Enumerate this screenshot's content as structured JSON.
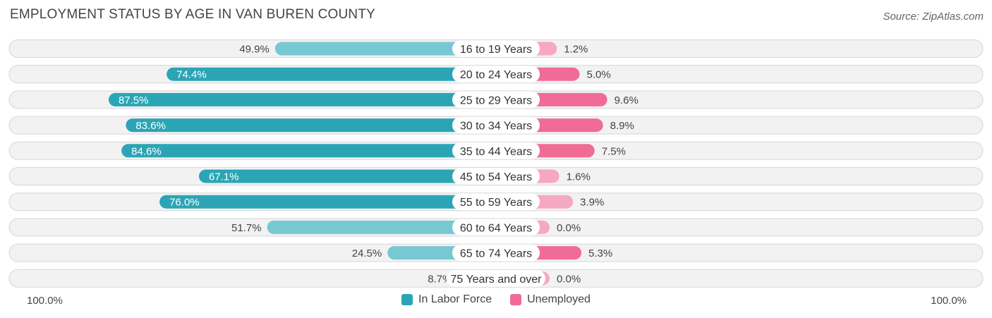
{
  "title": "EMPLOYMENT STATUS BY AGE IN VAN BUREN COUNTY",
  "source": "Source: ZipAtlas.com",
  "colors": {
    "labor_strong": "#2ba5b5",
    "labor_light": "#77c8d2",
    "unemployed_strong": "#f06c97",
    "unemployed_light": "#f6a8c2"
  },
  "chart_data": {
    "type": "bar",
    "orientation": "horizontal-diverging",
    "title": "EMPLOYMENT STATUS BY AGE IN VAN BUREN COUNTY",
    "categories": [
      "16 to 19 Years",
      "20 to 24 Years",
      "25 to 29 Years",
      "30 to 34 Years",
      "35 to 44 Years",
      "45 to 54 Years",
      "55 to 59 Years",
      "60 to 64 Years",
      "65 to 74 Years",
      "75 Years and over"
    ],
    "series": [
      {
        "name": "In Labor Force",
        "values": [
          49.9,
          74.4,
          87.5,
          83.6,
          84.6,
          67.1,
          76.0,
          51.7,
          24.5,
          8.7
        ],
        "labels": [
          "49.9%",
          "74.4%",
          "87.5%",
          "83.6%",
          "84.6%",
          "67.1%",
          "76.0%",
          "51.7%",
          "24.5%",
          "8.7%"
        ]
      },
      {
        "name": "Unemployed",
        "values": [
          1.2,
          5.0,
          9.6,
          8.9,
          7.5,
          1.6,
          3.9,
          0.0,
          5.3,
          0.0
        ],
        "labels": [
          "1.2%",
          "5.0%",
          "9.6%",
          "8.9%",
          "7.5%",
          "1.6%",
          "3.9%",
          "0.0%",
          "5.3%",
          "0.0%"
        ]
      }
    ],
    "axis_left_label": "100.0%",
    "axis_right_label": "100.0%",
    "legend": [
      "In Labor Force",
      "Unemployed"
    ],
    "legend_position": "bottom-center"
  }
}
